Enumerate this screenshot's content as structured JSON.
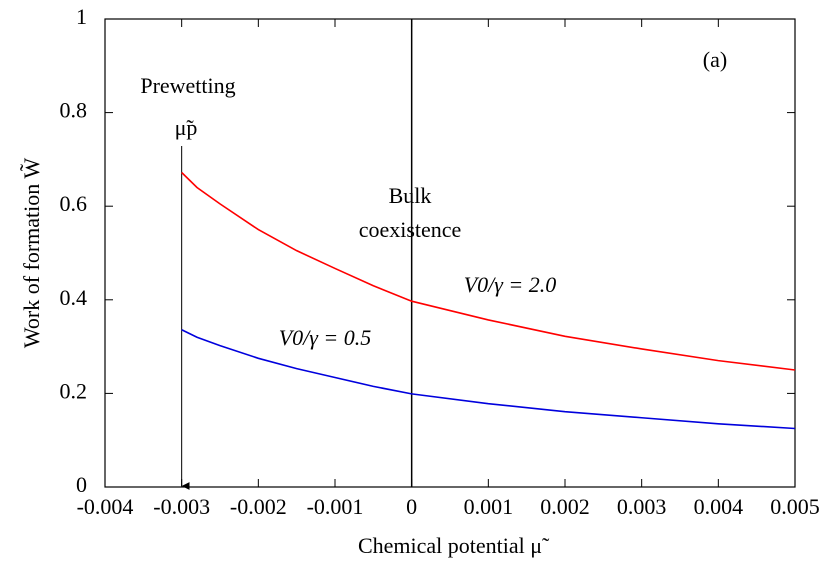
{
  "chart_data": {
    "type": "line",
    "title": "(a)",
    "x_label": "Chemical potential  μ̃",
    "y_label": "Work of formation W̃",
    "x": [
      -0.003,
      -0.0028,
      -0.0025,
      -0.002,
      -0.0015,
      -0.001,
      -0.0005,
      0,
      0.001,
      0.002,
      0.003,
      0.004,
      0.005
    ],
    "series": [
      {
        "name": "V0/γ = 2.0",
        "color": "#ff0000",
        "values": [
          0.672,
          0.64,
          0.605,
          0.55,
          0.505,
          0.467,
          0.43,
          0.397,
          0.357,
          0.322,
          0.295,
          0.27,
          0.25
        ]
      },
      {
        "name": "V0/γ = 0.5",
        "color": "#0000dd",
        "values": [
          0.336,
          0.32,
          0.302,
          0.275,
          0.253,
          0.234,
          0.215,
          0.199,
          0.178,
          0.161,
          0.148,
          0.135,
          0.125
        ]
      }
    ],
    "xlim": [
      -0.004,
      0.005
    ],
    "xticks": [
      -0.004,
      -0.003,
      -0.002,
      -0.001,
      0,
      0.001,
      0.002,
      0.003,
      0.004,
      0.005
    ],
    "ylim": [
      0,
      1
    ],
    "yticks": [
      0,
      0.2,
      0.4,
      0.6,
      0.8,
      1
    ],
    "annotations": {
      "prewetting": "Prewetting",
      "prewetting_symbol": "μ̃p",
      "prewetting_x": -0.003,
      "bulk_lines": [
        "Bulk",
        "coexistence"
      ],
      "bulk_x": 0
    }
  }
}
